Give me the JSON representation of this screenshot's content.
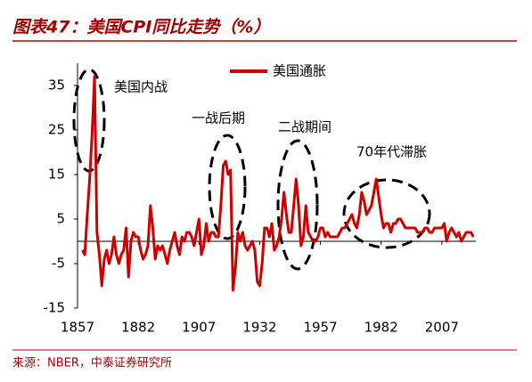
{
  "chart_data": {
    "type": "line",
    "title": "图表47：美国CPI同比走势（%）",
    "source": "来源：NBER，中泰证券研究所",
    "annotations": [
      "美国内战",
      "一战后期",
      "二战期间",
      "70年代滞胀"
    ],
    "x": [
      1859,
      1860,
      1861,
      1862,
      1863,
      1864,
      1865,
      1866,
      1867,
      1868,
      1869,
      1870,
      1871,
      1872,
      1873,
      1874,
      1875,
      1876,
      1877,
      1878,
      1879,
      1880,
      1881,
      1882,
      1883,
      1884,
      1885,
      1886,
      1887,
      1888,
      1889,
      1890,
      1891,
      1892,
      1893,
      1894,
      1895,
      1896,
      1897,
      1898,
      1899,
      1900,
      1901,
      1902,
      1903,
      1904,
      1905,
      1906,
      1907,
      1908,
      1909,
      1910,
      1911,
      1912,
      1913,
      1914,
      1915,
      1916,
      1917,
      1918,
      1919,
      1920,
      1921,
      1922,
      1923,
      1924,
      1925,
      1926,
      1927,
      1928,
      1929,
      1930,
      1931,
      1932,
      1933,
      1934,
      1935,
      1936,
      1937,
      1938,
      1939,
      1940,
      1941,
      1942,
      1943,
      1944,
      1945,
      1946,
      1947,
      1948,
      1949,
      1950,
      1951,
      1952,
      1953,
      1954,
      1955,
      1956,
      1957,
      1958,
      1959,
      1960,
      1961,
      1962,
      1963,
      1964,
      1965,
      1966,
      1967,
      1968,
      1969,
      1970,
      1971,
      1972,
      1973,
      1974,
      1975,
      1976,
      1977,
      1978,
      1979,
      1980,
      1981,
      1982,
      1983,
      1984,
      1985,
      1986,
      1987,
      1988,
      1989,
      1990,
      1991,
      1992,
      1993,
      1994,
      1995,
      1996,
      1997,
      1998,
      1999,
      2000,
      2001,
      2002,
      2003,
      2004,
      2005,
      2006,
      2007,
      2008,
      2009,
      2010,
      2011,
      2012,
      2013,
      2014,
      2015,
      2016,
      2017,
      2018,
      2019,
      2020
    ],
    "series": [
      {
        "name": "美国通胀",
        "color": "#cc0000",
        "values": [
          -2,
          -3,
          6,
          14,
          24,
          37,
          2,
          -3,
          -10,
          -4,
          -2,
          -5,
          -3,
          1,
          -3,
          -5,
          -3,
          -2,
          3,
          -8,
          0,
          2,
          1,
          1,
          -2,
          -4,
          -3,
          -1,
          8,
          3,
          -4,
          -1,
          -2,
          -1,
          -3,
          -5,
          -2,
          0,
          2,
          -1,
          -3,
          1,
          0,
          2,
          2,
          1,
          -1,
          2,
          5,
          -3,
          -1,
          4,
          0,
          2,
          2,
          1,
          1,
          8,
          17,
          18,
          15,
          16,
          -11,
          -6,
          2,
          0,
          2,
          -1,
          -2,
          -1,
          0,
          -2,
          -9,
          -10,
          -5,
          3,
          3,
          1,
          4,
          -2,
          -1,
          1,
          5,
          11,
          6,
          2,
          2,
          8,
          14,
          8,
          -1,
          1,
          8,
          2,
          1,
          0,
          0,
          1,
          3,
          3,
          1,
          2,
          1,
          1,
          1,
          1,
          2,
          3,
          3,
          4,
          5,
          6,
          4,
          3,
          6,
          11,
          9,
          6,
          7,
          8,
          11,
          14,
          10,
          6,
          3,
          4,
          4,
          2,
          4,
          4,
          5,
          5,
          4,
          3,
          3,
          3,
          3,
          3,
          2,
          2,
          2,
          3,
          3,
          2,
          2,
          3,
          3,
          3,
          3,
          4,
          0,
          2,
          3,
          2,
          1,
          2,
          0,
          1,
          2,
          2,
          2,
          1
        ]
      }
    ],
    "xlim": [
      1857,
      2021
    ],
    "xticks": [
      1857,
      1882,
      1907,
      1932,
      1957,
      1982,
      2007
    ],
    "ylim": [
      -15,
      40
    ],
    "yticks": [
      -15,
      -5,
      5,
      15,
      25,
      35
    ],
    "grid": false
  }
}
